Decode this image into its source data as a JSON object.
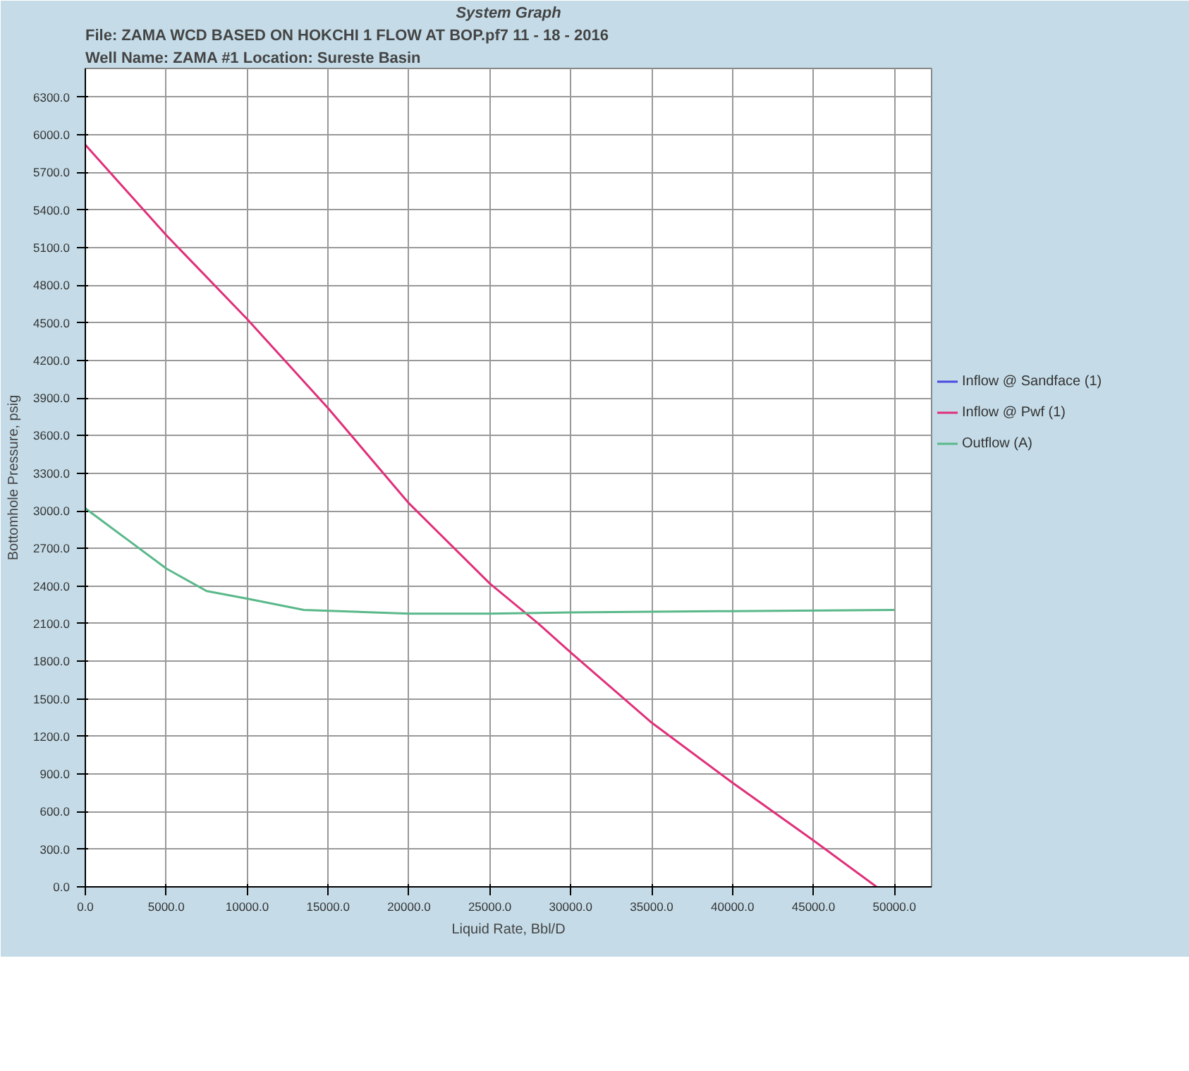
{
  "chart_data": {
    "type": "line",
    "title": "System Graph",
    "subtitle": "File: ZAMA WCD BASED ON HOKCHI 1 FLOW AT BOP.pf7",
    "annotations": [
      "11 - 18 - 2016",
      "Well Name: ZAMA #1",
      "Location: Sureste Basin"
    ],
    "xlabel": "Liquid Rate, Bbl/D",
    "ylabel": "Bottomhole Pressure, psig",
    "xlim": [
      0,
      52300
    ],
    "ylim": [
      0,
      6530
    ],
    "xticks": [
      {
        "value": 0,
        "label": "0.0"
      },
      {
        "value": 5000,
        "label": "5000.0"
      },
      {
        "value": 10000,
        "label": "10000.0"
      },
      {
        "value": 15000,
        "label": "15000.0"
      },
      {
        "value": 20000,
        "label": "20000.0"
      },
      {
        "value": 25000,
        "label": "25000.0"
      },
      {
        "value": 30000,
        "label": "30000.0"
      },
      {
        "value": 35000,
        "label": "35000.0"
      },
      {
        "value": 40000,
        "label": "40000.0"
      },
      {
        "value": 45000,
        "label": "45000.0"
      },
      {
        "value": 50000,
        "label": "50000.0"
      }
    ],
    "yticks": [
      {
        "value": 0,
        "label": "0.0"
      },
      {
        "value": 300,
        "label": "300.0"
      },
      {
        "value": 600,
        "label": "600.0"
      },
      {
        "value": 900,
        "label": "900.0"
      },
      {
        "value": 1200,
        "label": "1200.0"
      },
      {
        "value": 1500,
        "label": "1500.0"
      },
      {
        "value": 1800,
        "label": "1800.0"
      },
      {
        "value": 2100,
        "label": "2100.0"
      },
      {
        "value": 2400,
        "label": "2400.0"
      },
      {
        "value": 2700,
        "label": "2700.0"
      },
      {
        "value": 3000,
        "label": "3000.0"
      },
      {
        "value": 3300,
        "label": "3300.0"
      },
      {
        "value": 3600,
        "label": "3600.0"
      },
      {
        "value": 3900,
        "label": "3900.0"
      },
      {
        "value": 4200,
        "label": "4200.0"
      },
      {
        "value": 4500,
        "label": "4500.0"
      },
      {
        "value": 4800,
        "label": "4800.0"
      },
      {
        "value": 5100,
        "label": "5100.0"
      },
      {
        "value": 5400,
        "label": "5400.0"
      },
      {
        "value": 5700,
        "label": "5700.0"
      },
      {
        "value": 6000,
        "label": "6000.0"
      },
      {
        "value": 6300,
        "label": "6300.0"
      }
    ],
    "grid": true,
    "legend": "right",
    "marker": "none",
    "line_style": "solid",
    "series": [
      {
        "name": "Inflow @ Sandface (1)",
        "color": "#4a4ae0"
      },
      {
        "name": "Inflow @ Pwf (1)",
        "color": "#e0307a",
        "x": [
          0,
          5000,
          10000,
          15000,
          20000,
          25000,
          28000,
          30000,
          35000,
          40000,
          45000,
          48900
        ],
        "values": [
          5920,
          5200,
          4530,
          3820,
          3060,
          2420,
          2100,
          1870,
          1310,
          830,
          370,
          0
        ]
      },
      {
        "name": "Outflow (A)",
        "color": "#5ab88a",
        "x": [
          0,
          2500,
          5000,
          7500,
          10000,
          13500,
          20000,
          25000,
          30000,
          40000,
          50000
        ],
        "values": [
          3020,
          2780,
          2540,
          2360,
          2300,
          2210,
          2180,
          2180,
          2190,
          2200,
          2210
        ]
      }
    ]
  }
}
